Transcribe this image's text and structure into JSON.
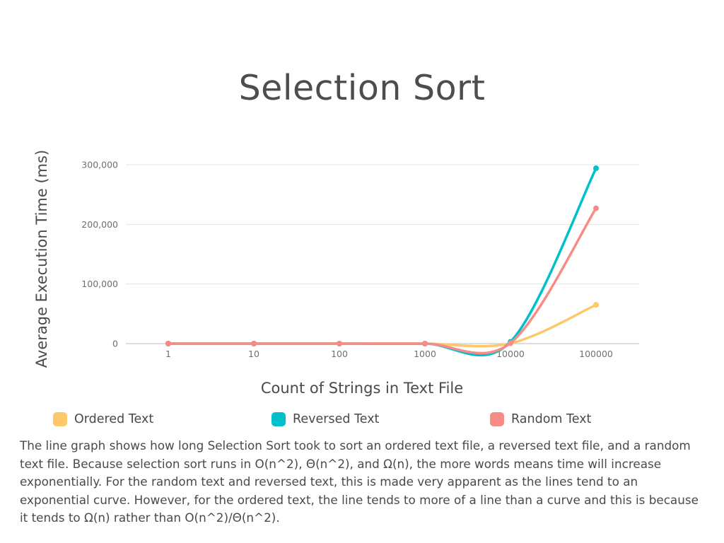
{
  "chart_data": {
    "type": "line",
    "title": "Selection Sort",
    "xlabel": "Count of Strings in Text File",
    "ylabel": "Average Execution Time (ms)",
    "categories": [
      "1",
      "10",
      "100",
      "1000",
      "10000",
      "100000"
    ],
    "y_ticks": [
      "0",
      "100,000",
      "200,000",
      "300,000"
    ],
    "y_tick_values": [
      0,
      100000,
      200000,
      300000
    ],
    "ylim": [
      0,
      300000
    ],
    "grid": true,
    "legend_position": "bottom",
    "series": [
      {
        "name": "Ordered Text",
        "color": "#fec86a",
        "values": [
          0,
          0,
          0,
          0,
          500,
          65000
        ]
      },
      {
        "name": "Reversed Text",
        "color": "#00c1cb",
        "values": [
          0,
          0,
          0,
          0,
          3000,
          294000
        ]
      },
      {
        "name": "Random Text",
        "color": "#f78b85",
        "values": [
          0,
          0,
          0,
          0,
          1000,
          227000
        ]
      }
    ]
  },
  "description": "The line graph shows how long Selection Sort took to sort an ordered text file, a reversed text file, and a random text file. Because selection sort runs in O(n^2), Θ(n^2), and Ω(n), the more words means time will increase exponentially. For the random text and reversed text, this is made very apparent as the lines tend to an exponential curve. However, for the ordered text, the line tends to more of a line than a curve and this is because it tends to Ω(n) rather than O(n^2)/Θ(n^2)."
}
